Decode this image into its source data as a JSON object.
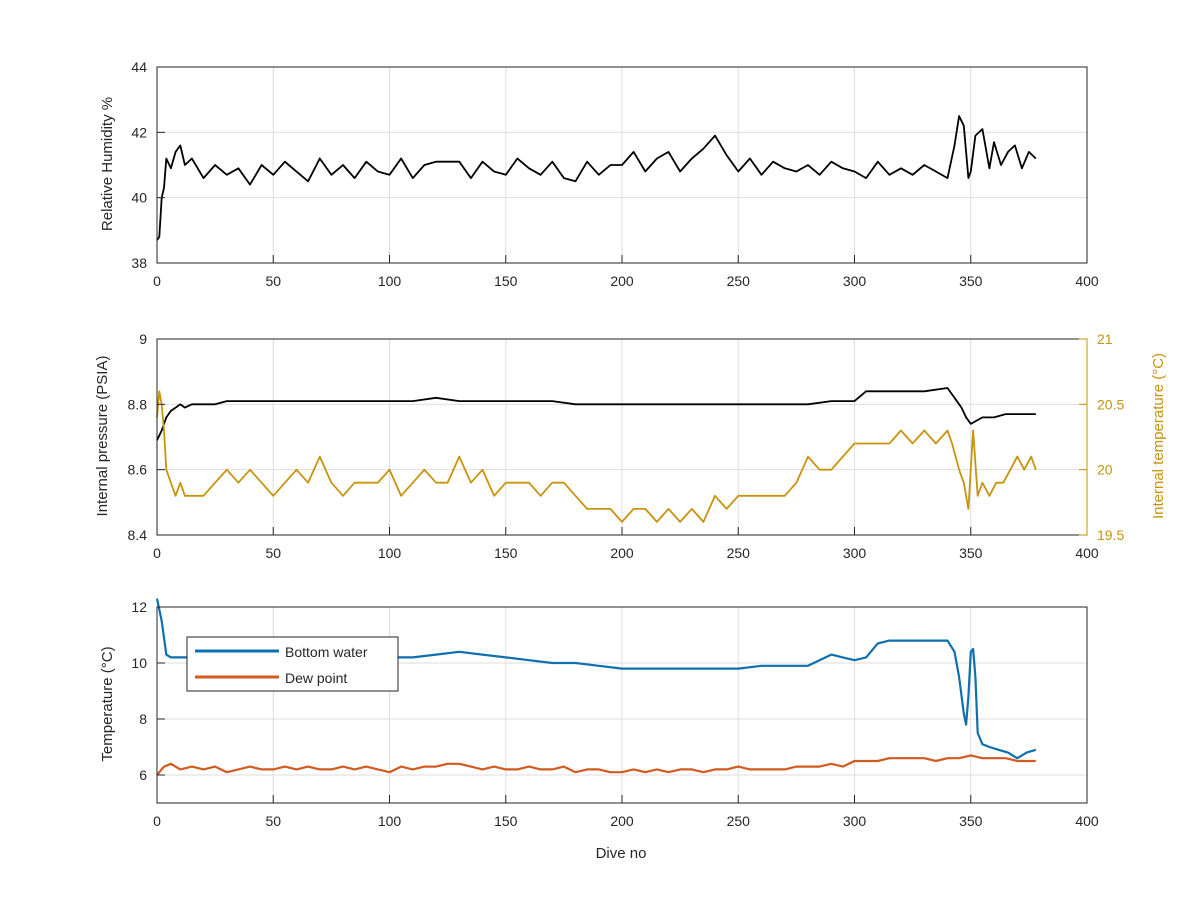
{
  "figure": {
    "background": "#ffffff"
  },
  "colors": {
    "axis": "#262626",
    "grid": "#dedede",
    "black_series": "#000000",
    "temperature_series": "#c8930d",
    "bottom_water": "#0e6fae",
    "dew_point": "#d15a1f"
  },
  "chart_data": [
    {
      "type": "line",
      "panel": "top",
      "xlabel": "",
      "ylabel": "Relative Humidity %",
      "xlim": [
        0,
        400
      ],
      "ylim": [
        38,
        44
      ],
      "xticks": [
        0,
        50,
        100,
        150,
        200,
        250,
        300,
        350,
        400
      ],
      "yticks": [
        38,
        40,
        42,
        44
      ],
      "grid": true,
      "series": [
        {
          "color": "#000000",
          "x": [
            0,
            1,
            2,
            3,
            4,
            6,
            8,
            10,
            12,
            15,
            20,
            25,
            30,
            35,
            40,
            45,
            50,
            55,
            60,
            65,
            70,
            75,
            80,
            85,
            90,
            95,
            100,
            105,
            110,
            115,
            120,
            125,
            130,
            135,
            140,
            145,
            150,
            155,
            160,
            165,
            170,
            175,
            180,
            185,
            190,
            195,
            200,
            205,
            210,
            215,
            220,
            225,
            230,
            235,
            240,
            245,
            250,
            255,
            260,
            265,
            270,
            275,
            280,
            285,
            290,
            295,
            300,
            305,
            310,
            315,
            320,
            325,
            330,
            335,
            340,
            343,
            345,
            347,
            349,
            350,
            352,
            355,
            358,
            360,
            363,
            366,
            369,
            372,
            375,
            378
          ],
          "y": [
            38.7,
            38.8,
            40.0,
            40.3,
            41.2,
            40.9,
            41.4,
            41.6,
            41.0,
            41.2,
            40.6,
            41.0,
            40.7,
            40.9,
            40.4,
            41.0,
            40.7,
            41.1,
            40.8,
            40.5,
            41.2,
            40.7,
            41.0,
            40.6,
            41.1,
            40.8,
            40.7,
            41.2,
            40.6,
            41.0,
            41.1,
            41.1,
            41.1,
            40.6,
            41.1,
            40.8,
            40.7,
            41.2,
            40.9,
            40.7,
            41.1,
            40.6,
            40.5,
            41.1,
            40.7,
            41.0,
            41.0,
            41.4,
            40.8,
            41.2,
            41.4,
            40.8,
            41.2,
            41.5,
            41.9,
            41.3,
            40.8,
            41.2,
            40.7,
            41.1,
            40.9,
            40.8,
            41.0,
            40.7,
            41.1,
            40.9,
            40.8,
            40.6,
            41.1,
            40.7,
            40.9,
            40.7,
            41.0,
            40.8,
            40.6,
            41.6,
            42.5,
            42.2,
            40.6,
            40.8,
            41.9,
            42.1,
            40.9,
            41.7,
            41.0,
            41.4,
            41.6,
            40.9,
            41.4,
            41.2
          ]
        }
      ]
    },
    {
      "type": "line",
      "panel": "middle",
      "xlabel": "",
      "ylabel": "Internal pressure (PSIA)",
      "ylabel_right": "Internal temperature (°C)",
      "xlim": [
        0,
        400
      ],
      "ylim": [
        8.4,
        9
      ],
      "ylim_right": [
        19.5,
        21
      ],
      "xticks": [
        0,
        50,
        100,
        150,
        200,
        250,
        300,
        350,
        400
      ],
      "yticks": [
        8.4,
        8.6,
        8.8,
        9
      ],
      "yticks_right": [
        19.5,
        20,
        20.5,
        21
      ],
      "grid": true,
      "series": [
        {
          "axis": "left",
          "color": "#000000",
          "x": [
            0,
            2,
            4,
            6,
            8,
            10,
            12,
            15,
            20,
            25,
            30,
            40,
            50,
            60,
            70,
            80,
            90,
            100,
            110,
            120,
            130,
            140,
            150,
            160,
            170,
            180,
            190,
            200,
            210,
            220,
            230,
            240,
            250,
            260,
            270,
            280,
            290,
            295,
            300,
            305,
            310,
            320,
            330,
            340,
            343,
            346,
            348,
            350,
            355,
            360,
            365,
            370,
            375,
            378
          ],
          "y": [
            8.69,
            8.72,
            8.76,
            8.78,
            8.79,
            8.8,
            8.79,
            8.8,
            8.8,
            8.8,
            8.81,
            8.81,
            8.81,
            8.81,
            8.81,
            8.81,
            8.81,
            8.81,
            8.81,
            8.82,
            8.81,
            8.81,
            8.81,
            8.81,
            8.81,
            8.8,
            8.8,
            8.8,
            8.8,
            8.8,
            8.8,
            8.8,
            8.8,
            8.8,
            8.8,
            8.8,
            8.81,
            8.81,
            8.81,
            8.84,
            8.84,
            8.84,
            8.84,
            8.85,
            8.82,
            8.79,
            8.76,
            8.74,
            8.76,
            8.76,
            8.77,
            8.77,
            8.77,
            8.77
          ]
        },
        {
          "axis": "right",
          "color": "#c8930d",
          "x": [
            0,
            1,
            2,
            3,
            4,
            6,
            8,
            10,
            12,
            15,
            20,
            25,
            30,
            35,
            40,
            45,
            50,
            55,
            60,
            65,
            70,
            75,
            80,
            85,
            90,
            95,
            100,
            105,
            110,
            115,
            120,
            125,
            130,
            135,
            140,
            145,
            150,
            155,
            160,
            165,
            170,
            175,
            180,
            185,
            190,
            195,
            200,
            205,
            210,
            215,
            220,
            225,
            230,
            235,
            240,
            245,
            250,
            255,
            260,
            265,
            270,
            275,
            280,
            285,
            290,
            295,
            300,
            305,
            310,
            315,
            320,
            325,
            330,
            335,
            340,
            342,
            345,
            347,
            349,
            351,
            353,
            355,
            358,
            361,
            364,
            367,
            370,
            373,
            376,
            378
          ],
          "y": [
            20.4,
            20.6,
            20.5,
            20.3,
            20.0,
            19.9,
            19.8,
            19.9,
            19.8,
            19.8,
            19.8,
            19.9,
            20.0,
            19.9,
            20.0,
            19.9,
            19.8,
            19.9,
            20.0,
            19.9,
            20.1,
            19.9,
            19.8,
            19.9,
            19.9,
            19.9,
            20.0,
            19.8,
            19.9,
            20.0,
            19.9,
            19.9,
            20.1,
            19.9,
            20.0,
            19.8,
            19.9,
            19.9,
            19.9,
            19.8,
            19.9,
            19.9,
            19.8,
            19.7,
            19.7,
            19.7,
            19.6,
            19.7,
            19.7,
            19.6,
            19.7,
            19.6,
            19.7,
            19.6,
            19.8,
            19.7,
            19.8,
            19.8,
            19.8,
            19.8,
            19.8,
            19.9,
            20.1,
            20.0,
            20.0,
            20.1,
            20.2,
            20.2,
            20.2,
            20.2,
            20.3,
            20.2,
            20.3,
            20.2,
            20.3,
            20.2,
            20.0,
            19.9,
            19.7,
            20.3,
            19.8,
            19.9,
            19.8,
            19.9,
            19.9,
            20.0,
            20.1,
            20.0,
            20.1,
            20.0
          ]
        }
      ]
    },
    {
      "type": "line",
      "panel": "bottom",
      "xlabel": "Dive no",
      "ylabel": "Temperature (°C)",
      "xlim": [
        0,
        400
      ],
      "ylim": [
        5,
        12
      ],
      "xticks": [
        0,
        50,
        100,
        150,
        200,
        250,
        300,
        350,
        400
      ],
      "yticks": [
        6,
        8,
        10,
        12
      ],
      "grid": true,
      "legend": "top-left",
      "series": [
        {
          "name": "Bottom water",
          "color": "#0e6fae",
          "x": [
            0,
            2,
            4,
            6,
            20,
            50,
            80,
            100,
            110,
            120,
            130,
            140,
            150,
            160,
            170,
            180,
            190,
            200,
            210,
            220,
            230,
            240,
            250,
            260,
            270,
            280,
            285,
            290,
            295,
            300,
            305,
            310,
            315,
            320,
            330,
            340,
            343,
            345,
            347,
            348,
            349,
            350,
            351,
            352,
            353,
            355,
            358,
            362,
            366,
            370,
            374,
            378
          ],
          "y": [
            12.3,
            11.5,
            10.3,
            10.2,
            10.2,
            10.2,
            10.2,
            10.2,
            10.2,
            10.3,
            10.4,
            10.3,
            10.2,
            10.1,
            10.0,
            10.0,
            9.9,
            9.8,
            9.8,
            9.8,
            9.8,
            9.8,
            9.8,
            9.9,
            9.9,
            9.9,
            10.1,
            10.3,
            10.2,
            10.1,
            10.2,
            10.7,
            10.8,
            10.8,
            10.8,
            10.8,
            10.4,
            9.5,
            8.2,
            7.8,
            8.8,
            10.4,
            10.5,
            9.5,
            7.5,
            7.1,
            7.0,
            6.9,
            6.8,
            6.6,
            6.8,
            6.9
          ]
        },
        {
          "name": "Dew point",
          "color": "#d15a1f",
          "x": [
            0,
            3,
            6,
            10,
            15,
            20,
            25,
            30,
            35,
            40,
            45,
            50,
            55,
            60,
            65,
            70,
            75,
            80,
            85,
            90,
            95,
            100,
            105,
            110,
            115,
            120,
            125,
            130,
            135,
            140,
            145,
            150,
            155,
            160,
            165,
            170,
            175,
            180,
            185,
            190,
            195,
            200,
            205,
            210,
            215,
            220,
            225,
            230,
            235,
            240,
            245,
            250,
            255,
            260,
            265,
            270,
            275,
            280,
            285,
            290,
            295,
            300,
            305,
            310,
            315,
            320,
            325,
            330,
            335,
            340,
            345,
            350,
            355,
            360,
            365,
            370,
            375,
            378
          ],
          "y": [
            6.0,
            6.3,
            6.4,
            6.2,
            6.3,
            6.2,
            6.3,
            6.1,
            6.2,
            6.3,
            6.2,
            6.2,
            6.3,
            6.2,
            6.3,
            6.2,
            6.2,
            6.3,
            6.2,
            6.3,
            6.2,
            6.1,
            6.3,
            6.2,
            6.3,
            6.3,
            6.4,
            6.4,
            6.3,
            6.2,
            6.3,
            6.2,
            6.2,
            6.3,
            6.2,
            6.2,
            6.3,
            6.1,
            6.2,
            6.2,
            6.1,
            6.1,
            6.2,
            6.1,
            6.2,
            6.1,
            6.2,
            6.2,
            6.1,
            6.2,
            6.2,
            6.3,
            6.2,
            6.2,
            6.2,
            6.2,
            6.3,
            6.3,
            6.3,
            6.4,
            6.3,
            6.5,
            6.5,
            6.5,
            6.6,
            6.6,
            6.6,
            6.6,
            6.5,
            6.6,
            6.6,
            6.7,
            6.6,
            6.6,
            6.6,
            6.5,
            6.5,
            6.5
          ]
        }
      ]
    }
  ]
}
